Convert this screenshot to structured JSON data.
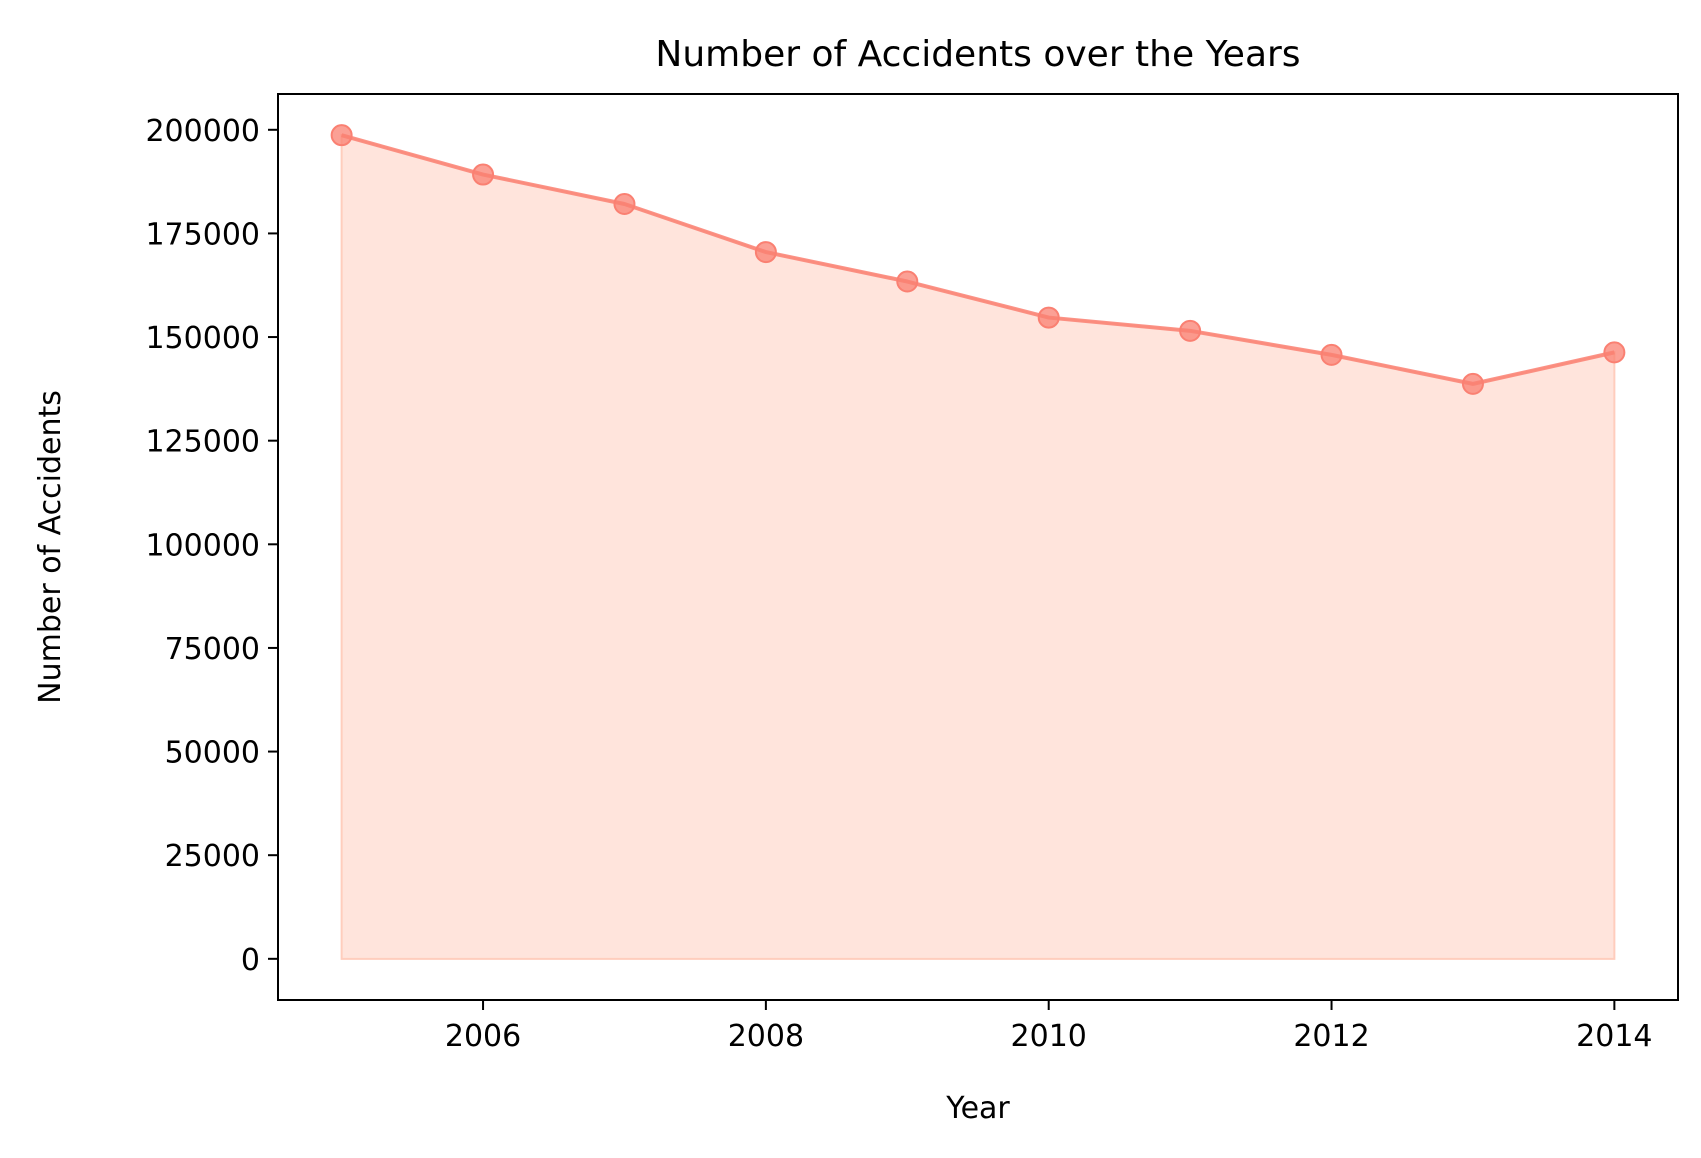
{
  "chart_data": {
    "type": "area",
    "title": "Number of Accidents over the Years",
    "xlabel": "Year",
    "ylabel": "Number of Accidents",
    "x": [
      2005,
      2006,
      2007,
      2008,
      2009,
      2010,
      2011,
      2012,
      2013,
      2014
    ],
    "values": [
      198700,
      189200,
      182100,
      170500,
      163400,
      154700,
      151500,
      145700,
      138700,
      146300
    ],
    "xlim": [
      2004.55,
      2014.45
    ],
    "ylim": [
      -9935,
      208635
    ],
    "xticks": [
      "2006",
      "2008",
      "2010",
      "2012",
      "2014"
    ],
    "yticks": [
      "0",
      "25000",
      "50000",
      "75000",
      "100000",
      "125000",
      "150000",
      "175000",
      "200000"
    ],
    "grid": false,
    "line_color": "#fa8072",
    "fill_color": "#ffe4dc",
    "fill_edge_color": "#ffcdbd"
  }
}
